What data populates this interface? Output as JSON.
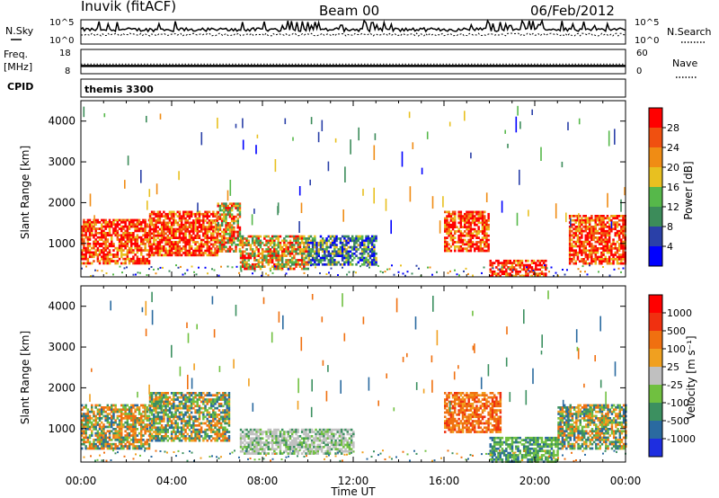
{
  "header": {
    "station": "Inuvik  (fitACF)",
    "beam": "Beam 00",
    "date": "06/Feb/2012"
  },
  "noise_panel": {
    "left_label": "N.Sky",
    "right_label": "N.Search",
    "left_ticks": [
      "10^5",
      "10^0"
    ],
    "right_ticks": [
      "10^5",
      "10^0"
    ]
  },
  "freq_panel": {
    "left_label_1": "Freq.",
    "left_label_2": "[MHz]",
    "right_label": "Nave",
    "left_ticks": [
      "18",
      "8"
    ],
    "right_ticks": [
      "60",
      "0"
    ],
    "freq_mhz": 11,
    "nave": 24
  },
  "cpid_panel": {
    "label": "CPID",
    "program": "themis 3300"
  },
  "colors": {
    "power": [
      "#0000ff",
      "#2a40a8",
      "#3c8c5a",
      "#56b84a",
      "#e8c020",
      "#f08c14",
      "#f05010",
      "#ff0000"
    ],
    "velocity": [
      "#1e2ee0",
      "#2a6aa0",
      "#3c9060",
      "#70c040",
      "#c0c0c0",
      "#f0a020",
      "#f07010",
      "#f03010",
      "#ff0000"
    ]
  },
  "chart_data": [
    {
      "type": "heatmap",
      "name": "power",
      "ylabel": "Slant Range [km]",
      "xlabel": "",
      "ylim": [
        180,
        4500
      ],
      "yticks": [
        "1000",
        "2000",
        "3000",
        "4000"
      ],
      "xticks": [
        "00:00",
        "04:00",
        "08:00",
        "12:00",
        "16:00",
        "20:00",
        "00:00"
      ],
      "colorbar": {
        "label": "Power [dB]",
        "ticks": [
          "28",
          "24",
          "20",
          "16",
          "12",
          "8",
          "4"
        ]
      },
      "regions": [
        {
          "t0": 0.0,
          "t1": 3.0,
          "r0": 500,
          "r1": 1600,
          "level": "high"
        },
        {
          "t0": 3.0,
          "t1": 6.0,
          "r0": 700,
          "r1": 1800,
          "level": "high"
        },
        {
          "t0": 6.0,
          "t1": 7.0,
          "r0": 800,
          "r1": 2000,
          "level": "medium"
        },
        {
          "t0": 7.0,
          "t1": 10.0,
          "r0": 400,
          "r1": 1200,
          "level": "medium"
        },
        {
          "t0": 10.0,
          "t1": 13.0,
          "r0": 500,
          "r1": 1200,
          "level": "low"
        },
        {
          "t0": 16.0,
          "t1": 18.0,
          "r0": 800,
          "r1": 1800,
          "level": "high"
        },
        {
          "t0": 18.0,
          "t1": 20.5,
          "r0": 180,
          "r1": 600,
          "level": "high"
        },
        {
          "t0": 21.5,
          "t1": 24.0,
          "r0": 500,
          "r1": 1700,
          "level": "high"
        }
      ]
    },
    {
      "type": "heatmap",
      "name": "velocity",
      "ylabel": "Slant Range [km]",
      "xlabel": "Time UT",
      "ylim": [
        180,
        4500
      ],
      "yticks": [
        "1000",
        "2000",
        "3000",
        "4000"
      ],
      "xticks": [
        "00:00",
        "04:00",
        "08:00",
        "12:00",
        "16:00",
        "20:00",
        "00:00"
      ],
      "colorbar": {
        "label": "Velocity [m s⁻¹]",
        "ticks": [
          "1000",
          "500",
          "100",
          "25",
          "-25",
          "-100",
          "-500",
          "-1000"
        ]
      },
      "regions": [
        {
          "t0": 0.0,
          "t1": 3.0,
          "r0": 500,
          "r1": 1600,
          "level": "mixed-orange"
        },
        {
          "t0": 3.0,
          "t1": 6.5,
          "r0": 700,
          "r1": 1900,
          "level": "mixed-green"
        },
        {
          "t0": 7.0,
          "t1": 12.0,
          "r0": 400,
          "r1": 1000,
          "level": "grey"
        },
        {
          "t0": 16.0,
          "t1": 18.5,
          "r0": 900,
          "r1": 1900,
          "level": "orange"
        },
        {
          "t0": 18.0,
          "t1": 21.0,
          "r0": 180,
          "r1": 800,
          "level": "green"
        },
        {
          "t0": 21.0,
          "t1": 24.0,
          "r0": 500,
          "r1": 1600,
          "level": "mixed-blue"
        }
      ]
    }
  ]
}
